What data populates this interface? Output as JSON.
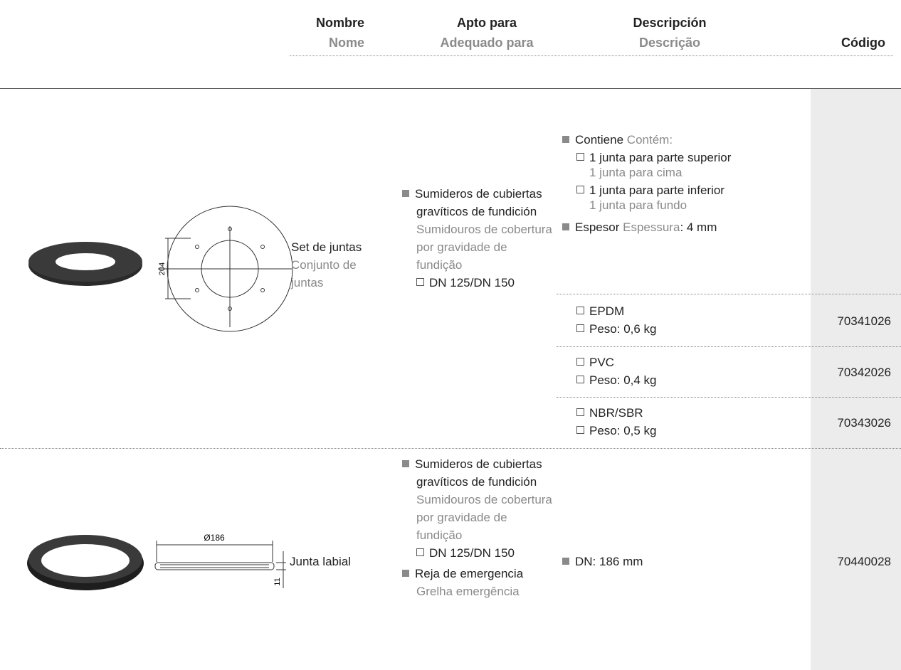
{
  "header": {
    "nombre": {
      "es": "Nombre",
      "pt": "Nome"
    },
    "apto": {
      "es": "Apto para",
      "pt": "Adequado para"
    },
    "descripcion": {
      "es": "Descripción",
      "pt": "Descrição"
    },
    "codigo": "Código"
  },
  "rows": [
    {
      "drawing_labels": [
        "204"
      ],
      "name_es": "Set de juntas",
      "name_pt": "Conjunto de juntas",
      "suitable": [
        {
          "es": "Sumideros de cubiertas gravíticos de fundición",
          "pt": "Sumidouros de cobertura por gravidade de fundição",
          "sub": "DN 125/DN 150"
        }
      ],
      "description": {
        "contains_es": "Contiene",
        "contains_pt": "Contém:",
        "items": [
          {
            "es": "1 junta para parte superior",
            "pt": "1 junta para cima"
          },
          {
            "es": "1 junta para parte inferior",
            "pt": "1 junta para fundo"
          }
        ],
        "thickness_es": "Espesor",
        "thickness_pt": "Espessura",
        "thickness_value": ": 4 mm"
      },
      "variants": [
        {
          "material": "EPDM",
          "weight": "Peso: 0,6 kg",
          "code": "70341026"
        },
        {
          "material": "PVC",
          "weight": "Peso: 0,4 kg",
          "code": "70342026"
        },
        {
          "material": "NBR/SBR",
          "weight": "Peso: 0,5 kg",
          "code": "70343026"
        }
      ]
    },
    {
      "drawing_labels": [
        "Ø186",
        "11"
      ],
      "name_es": "Junta labial",
      "suitable": [
        {
          "es": "Sumideros de cubiertas gravíticos de fundición",
          "pt": "Sumidouros de cobertura por gravidade de fundição",
          "sub": "DN 125/DN 150"
        },
        {
          "es": "Reja de emergencia",
          "pt": "Grelha emergência"
        }
      ],
      "description": {
        "text": "DN: 186 mm"
      },
      "code": "70440028"
    }
  ]
}
